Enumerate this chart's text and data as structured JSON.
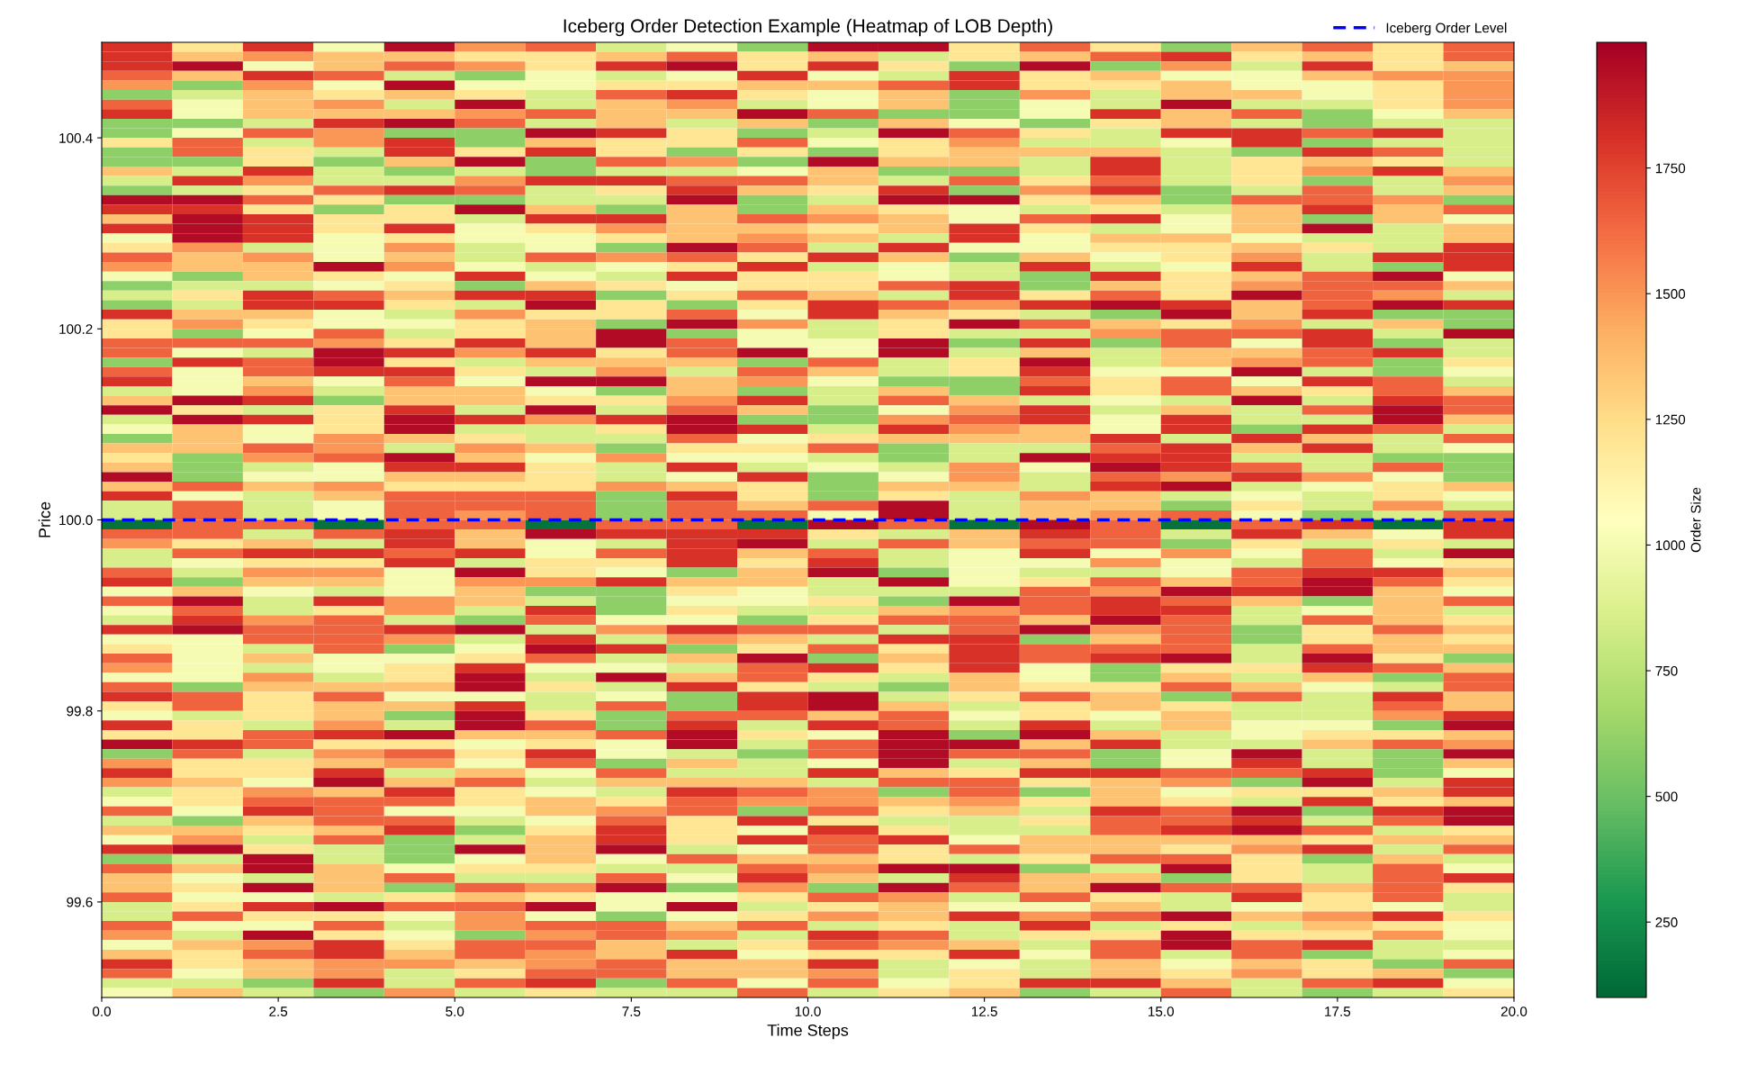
{
  "chart_data": {
    "type": "heatmap",
    "title": "Iceberg Order Detection Example (Heatmap of LOB Depth)",
    "xlabel": "Time Steps",
    "ylabel": "Price",
    "clabel": "Order Size",
    "xlim": [
      0,
      20
    ],
    "xticks": [
      {
        "value": 0,
        "label": "0.0"
      },
      {
        "value": 2.5,
        "label": "2.5"
      },
      {
        "value": 5,
        "label": "5.0"
      },
      {
        "value": 7.5,
        "label": "7.5"
      },
      {
        "value": 10,
        "label": "10.0"
      },
      {
        "value": 12.5,
        "label": "12.5"
      },
      {
        "value": 15,
        "label": "15.0"
      },
      {
        "value": 17.5,
        "label": "17.5"
      },
      {
        "value": 20,
        "label": "20.0"
      }
    ],
    "ylim": [
      99.5,
      100.5
    ],
    "yticks": [
      99.6,
      99.8,
      {
        "value": 100,
        "label": "100.0"
      },
      100.2,
      100.4
    ],
    "clim": [
      100,
      2000
    ],
    "cticks": [
      250,
      500,
      750,
      1000,
      1250,
      1500,
      1750
    ],
    "ref_lines": [
      {
        "axis": "y",
        "value": 100,
        "label": "Iceberg Order Level",
        "color": "#0000ff",
        "line_style": "dashed"
      }
    ],
    "legend": "top right",
    "cells": [
      [
        1800,
        1200,
        1800,
        1000,
        1950,
        1500,
        1650,
        850,
        1000,
        600,
        1950,
        1950,
        1200,
        1650,
        1200,
        600,
        1350,
        1650,
        1200,
        1650
      ],
      [
        1800,
        1350,
        1500,
        1350,
        1350,
        1200,
        1200,
        1350,
        1650,
        1200,
        1350,
        850,
        1200,
        1350,
        1650,
        1800,
        1200,
        1350,
        1200,
        1650
      ],
      [
        1800,
        1950,
        1000,
        1350,
        1650,
        1500,
        1200,
        1800,
        1950,
        1200,
        1800,
        1200,
        600,
        1950,
        600,
        1500,
        850,
        1800,
        1200,
        1350
      ],
      [
        1650,
        1350,
        1800,
        1650,
        850,
        600,
        1000,
        850,
        1000,
        1800,
        1000,
        850,
        1800,
        1200,
        1350,
        1000,
        1000,
        1350,
        1500,
        1500
      ],
      [
        1500,
        600,
        1500,
        1000,
        1950,
        1000,
        1000,
        1200,
        1200,
        1350,
        1350,
        1650,
        1800,
        1200,
        1200,
        1350,
        1000,
        1000,
        1200,
        1500
      ],
      [
        600,
        850,
        1350,
        1200,
        1350,
        1200,
        850,
        1650,
        1800,
        1200,
        1000,
        1350,
        600,
        1500,
        850,
        1350,
        1350,
        1000,
        1200,
        1500
      ],
      [
        1650,
        1000,
        1350,
        1500,
        850,
        1950,
        850,
        1350,
        1500,
        850,
        1000,
        1350,
        600,
        1000,
        850,
        1950,
        850,
        850,
        1200,
        1500
      ],
      [
        1800,
        1000,
        1350,
        1350,
        1350,
        1500,
        1650,
        1350,
        1350,
        1950,
        1650,
        600,
        600,
        1000,
        1800,
        1350,
        1650,
        600,
        1000,
        1350
      ],
      [
        600,
        600,
        850,
        1800,
        1950,
        1650,
        850,
        1350,
        850,
        1350,
        600,
        1350,
        1000,
        600,
        1200,
        1350,
        850,
        600,
        850,
        850
      ],
      [
        600,
        1000,
        1650,
        1500,
        600,
        600,
        1950,
        1800,
        1200,
        600,
        850,
        1950,
        1650,
        1200,
        850,
        1800,
        1800,
        1650,
        1800,
        850
      ],
      [
        1200,
        1650,
        850,
        1500,
        1800,
        600,
        1350,
        1200,
        1200,
        1650,
        1000,
        1200,
        1500,
        850,
        850,
        1000,
        1800,
        600,
        850,
        850
      ],
      [
        600,
        1650,
        1200,
        850,
        1800,
        1200,
        1800,
        1200,
        600,
        1200,
        600,
        1200,
        1350,
        1350,
        1350,
        850,
        600,
        1800,
        1650,
        850
      ],
      [
        600,
        600,
        1200,
        600,
        1350,
        1950,
        600,
        1650,
        1500,
        600,
        1950,
        1350,
        1350,
        850,
        1800,
        850,
        1200,
        1350,
        1200,
        850
      ],
      [
        1350,
        850,
        1800,
        850,
        600,
        850,
        600,
        850,
        850,
        1000,
        1350,
        600,
        600,
        850,
        1800,
        850,
        1200,
        1500,
        1800,
        1350
      ],
      [
        850,
        1800,
        1500,
        850,
        850,
        1500,
        1800,
        1800,
        1650,
        1650,
        1350,
        850,
        1650,
        1200,
        1650,
        850,
        1200,
        600,
        850,
        1500
      ],
      [
        600,
        850,
        1200,
        1650,
        1800,
        1650,
        850,
        1200,
        1800,
        1350,
        1200,
        1800,
        600,
        1500,
        1800,
        600,
        850,
        1650,
        850,
        1350
      ],
      [
        1950,
        1950,
        1650,
        1200,
        600,
        600,
        850,
        850,
        1950,
        600,
        850,
        1950,
        1950,
        1200,
        1350,
        600,
        1650,
        1650,
        1500,
        600
      ],
      [
        1800,
        1800,
        1200,
        600,
        1200,
        1950,
        1350,
        600,
        1350,
        600,
        1350,
        1200,
        1000,
        850,
        1200,
        850,
        1350,
        1800,
        1350,
        1650
      ],
      [
        1350,
        1950,
        1800,
        1200,
        1200,
        850,
        1800,
        1800,
        1350,
        1650,
        1500,
        1350,
        1000,
        1650,
        1800,
        1000,
        1350,
        600,
        1350,
        1000
      ],
      [
        1800,
        1950,
        1800,
        1200,
        1800,
        1000,
        1200,
        1500,
        1350,
        1350,
        1200,
        1350,
        1800,
        1200,
        850,
        1000,
        1350,
        1950,
        850,
        1350
      ],
      [
        1000,
        1950,
        1800,
        1000,
        1200,
        1000,
        1000,
        1200,
        1350,
        1500,
        1350,
        850,
        1800,
        1000,
        1350,
        1350,
        1000,
        850,
        850,
        1350
      ],
      [
        1200,
        1500,
        850,
        1000,
        1500,
        850,
        1000,
        600,
        1950,
        1650,
        850,
        1800,
        1000,
        1000,
        1200,
        1200,
        1350,
        1200,
        850,
        1800
      ],
      [
        1650,
        1350,
        1500,
        1000,
        1350,
        850,
        1650,
        1500,
        1650,
        1200,
        1800,
        1350,
        600,
        1350,
        1000,
        1200,
        1500,
        850,
        1800,
        1800
      ],
      [
        1500,
        1350,
        1350,
        1950,
        1500,
        1000,
        850,
        1000,
        1200,
        1800,
        850,
        1000,
        850,
        1800,
        850,
        1000,
        1800,
        850,
        600,
        1800
      ],
      [
        1000,
        600,
        1350,
        1200,
        1000,
        1800,
        1000,
        850,
        1800,
        1200,
        1200,
        1000,
        850,
        600,
        1800,
        1200,
        1350,
        1650,
        1950,
        1000
      ],
      [
        600,
        850,
        850,
        1000,
        1200,
        600,
        1350,
        1200,
        1000,
        1200,
        1200,
        1650,
        1800,
        600,
        1350,
        1200,
        1500,
        1650,
        1650,
        1350
      ],
      [
        850,
        1200,
        1800,
        1650,
        1350,
        1800,
        1800,
        600,
        1200,
        1650,
        1350,
        850,
        1800,
        1200,
        1650,
        1200,
        1950,
        1650,
        1500,
        850
      ],
      [
        600,
        850,
        1800,
        1800,
        1200,
        850,
        1950,
        1200,
        600,
        1200,
        1800,
        1650,
        1500,
        1800,
        1950,
        1800,
        1350,
        1650,
        1950,
        1800
      ],
      [
        1800,
        1350,
        1350,
        1000,
        850,
        1500,
        1200,
        1200,
        1650,
        1000,
        1800,
        1350,
        1200,
        850,
        600,
        1950,
        1350,
        1800,
        600,
        600
      ],
      [
        1200,
        1500,
        1200,
        1000,
        1000,
        1200,
        1350,
        600,
        1950,
        1500,
        850,
        1200,
        1950,
        1650,
        1350,
        1200,
        1500,
        850,
        1350,
        600
      ],
      [
        1200,
        600,
        1000,
        1650,
        850,
        1200,
        1350,
        1950,
        600,
        1000,
        850,
        1200,
        850,
        850,
        1500,
        1650,
        1650,
        1800,
        850,
        1950
      ],
      [
        1650,
        1650,
        1650,
        1500,
        1200,
        1800,
        1350,
        1950,
        1650,
        1000,
        1000,
        1950,
        600,
        1800,
        600,
        1650,
        1000,
        1800,
        600,
        850
      ],
      [
        1650,
        1000,
        850,
        1950,
        1800,
        1500,
        1800,
        1200,
        1650,
        1950,
        1000,
        1950,
        850,
        1350,
        850,
        1350,
        1350,
        1650,
        1800,
        850
      ],
      [
        600,
        1800,
        1650,
        1950,
        1200,
        850,
        1350,
        1350,
        1350,
        600,
        1650,
        850,
        1200,
        1950,
        850,
        1350,
        1500,
        1650,
        600,
        1200
      ],
      [
        1650,
        1000,
        1650,
        1800,
        1800,
        1200,
        850,
        1500,
        850,
        1650,
        1350,
        850,
        1200,
        1800,
        1000,
        1000,
        1950,
        850,
        600,
        1000
      ],
      [
        1800,
        1000,
        1350,
        1000,
        1650,
        1000,
        1950,
        1950,
        1350,
        1500,
        1000,
        600,
        600,
        1650,
        1200,
        1650,
        1000,
        1800,
        1650,
        850
      ],
      [
        850,
        1000,
        1500,
        850,
        1350,
        1350,
        1000,
        600,
        1350,
        600,
        850,
        1350,
        600,
        1800,
        1200,
        1650,
        1350,
        1200,
        1650,
        1350
      ],
      [
        1350,
        1950,
        1800,
        600,
        1350,
        1350,
        1200,
        1200,
        1500,
        1800,
        850,
        1650,
        1350,
        850,
        1000,
        850,
        1950,
        850,
        1800,
        1650
      ],
      [
        1950,
        1200,
        850,
        1200,
        1800,
        850,
        1950,
        850,
        1650,
        1350,
        600,
        1000,
        1500,
        1800,
        850,
        1350,
        850,
        1650,
        1950,
        1650
      ],
      [
        850,
        1950,
        1800,
        1200,
        1950,
        1800,
        1500,
        1800,
        1950,
        600,
        600,
        1500,
        1650,
        1800,
        1000,
        1800,
        850,
        850,
        1950,
        1350
      ],
      [
        1000,
        1350,
        1000,
        1200,
        1950,
        850,
        850,
        1200,
        1950,
        1800,
        850,
        1800,
        1500,
        1350,
        1000,
        1800,
        600,
        1800,
        1650,
        850
      ],
      [
        600,
        1350,
        1000,
        1500,
        1350,
        1200,
        850,
        850,
        1650,
        1000,
        1200,
        1350,
        1350,
        1350,
        1800,
        850,
        1800,
        1350,
        850,
        1650
      ],
      [
        1350,
        1350,
        1650,
        1500,
        850,
        1500,
        1350,
        600,
        1200,
        1200,
        1650,
        600,
        850,
        850,
        1650,
        1800,
        1350,
        1800,
        850,
        1000
      ],
      [
        1200,
        600,
        1500,
        1650,
        1950,
        1350,
        1000,
        1500,
        1000,
        1000,
        850,
        600,
        850,
        1950,
        1800,
        1800,
        850,
        850,
        600,
        600
      ],
      [
        1350,
        600,
        850,
        1000,
        1800,
        1800,
        1200,
        850,
        1800,
        850,
        1000,
        850,
        1500,
        1000,
        1950,
        1800,
        1650,
        850,
        1650,
        600
      ],
      [
        1950,
        600,
        1000,
        1000,
        1350,
        1350,
        1200,
        850,
        1000,
        1800,
        600,
        1000,
        1500,
        850,
        1650,
        1500,
        1800,
        1500,
        1000,
        600
      ],
      [
        1350,
        1650,
        1350,
        1500,
        1200,
        1200,
        1200,
        1500,
        1350,
        1200,
        600,
        1350,
        1350,
        850,
        1800,
        1950,
        850,
        1000,
        1200,
        1350
      ],
      [
        1800,
        1000,
        850,
        1350,
        1650,
        1650,
        1650,
        600,
        1800,
        1200,
        600,
        1200,
        850,
        1500,
        1350,
        850,
        1000,
        850,
        1200,
        1000
      ],
      [
        850,
        1650,
        850,
        1000,
        1650,
        1650,
        1650,
        600,
        1650,
        1350,
        1650,
        1950,
        850,
        1350,
        1350,
        600,
        1200,
        850,
        1500,
        850
      ],
      [
        850,
        1650,
        850,
        1000,
        1650,
        1500,
        1650,
        600,
        1650,
        1650,
        1000,
        1950,
        850,
        1350,
        1500,
        1650,
        1000,
        600,
        850,
        1650
      ],
      [
        150,
        1650,
        1650,
        150,
        1650,
        1650,
        150,
        1650,
        1650,
        150,
        1950,
        1650,
        150,
        1950,
        1650,
        150,
        1650,
        1800,
        150,
        1800
      ],
      [
        1650,
        1650,
        850,
        1650,
        1800,
        1350,
        1950,
        1800,
        1800,
        1800,
        1200,
        850,
        1350,
        1800,
        1650,
        850,
        1800,
        1350,
        1000,
        1800
      ],
      [
        1500,
        1200,
        1350,
        850,
        1800,
        1350,
        1000,
        850,
        1800,
        1950,
        850,
        1650,
        1350,
        1650,
        1650,
        600,
        1200,
        850,
        1200,
        850
      ],
      [
        850,
        1650,
        1800,
        1800,
        1650,
        1800,
        1000,
        1650,
        1800,
        1350,
        1650,
        850,
        1000,
        1800,
        1000,
        1500,
        1000,
        1650,
        850,
        1950
      ],
      [
        850,
        1000,
        1200,
        1200,
        1800,
        850,
        1200,
        1200,
        1800,
        1200,
        1800,
        850,
        1000,
        1000,
        1500,
        1000,
        850,
        1650,
        1000,
        1200
      ],
      [
        1650,
        850,
        1500,
        1500,
        1000,
        1950,
        1200,
        1000,
        600,
        1350,
        1950,
        600,
        1000,
        850,
        850,
        1000,
        1650,
        1800,
        1800,
        1350
      ],
      [
        1800,
        600,
        1350,
        1350,
        1000,
        1500,
        1500,
        1800,
        1350,
        1350,
        850,
        1950,
        1000,
        1200,
        1650,
        1350,
        1650,
        1950,
        1650,
        1200
      ],
      [
        1000,
        1350,
        1000,
        850,
        1000,
        1350,
        600,
        600,
        1200,
        1000,
        850,
        850,
        850,
        1650,
        1500,
        1950,
        1800,
        1950,
        1350,
        1000
      ],
      [
        1650,
        1950,
        850,
        1800,
        1500,
        1350,
        850,
        600,
        1000,
        1000,
        1200,
        600,
        1950,
        1650,
        1800,
        1650,
        1350,
        600,
        1350,
        1650
      ],
      [
        1000,
        1650,
        850,
        1200,
        1500,
        850,
        1800,
        600,
        1200,
        850,
        850,
        1350,
        1500,
        1650,
        1800,
        1800,
        850,
        1000,
        1350,
        850
      ],
      [
        850,
        1800,
        1500,
        1650,
        850,
        600,
        1650,
        1000,
        1000,
        600,
        1200,
        1650,
        1650,
        1350,
        1950,
        1650,
        850,
        1650,
        1350,
        1200
      ],
      [
        1800,
        1950,
        1650,
        1650,
        1800,
        1950,
        850,
        1500,
        1800,
        1650,
        1650,
        850,
        1650,
        1950,
        1500,
        1650,
        600,
        1200,
        1650,
        1350
      ],
      [
        1000,
        1000,
        1650,
        1650,
        1500,
        850,
        1800,
        850,
        1500,
        1350,
        850,
        1800,
        1800,
        600,
        1350,
        1650,
        600,
        1200,
        1350,
        1200
      ],
      [
        1200,
        1000,
        850,
        1650,
        600,
        1000,
        1950,
        1800,
        600,
        1200,
        1650,
        1200,
        1800,
        1650,
        1650,
        1650,
        850,
        1650,
        1350,
        1350
      ],
      [
        1650,
        1000,
        1350,
        1000,
        1000,
        1200,
        1650,
        850,
        1350,
        1950,
        600,
        1350,
        1800,
        1650,
        1800,
        1950,
        850,
        1950,
        1200,
        600
      ],
      [
        1500,
        1000,
        850,
        1000,
        1200,
        1800,
        1000,
        1000,
        850,
        1650,
        1800,
        1200,
        1800,
        1000,
        600,
        1200,
        1200,
        1800,
        1650,
        1350
      ],
      [
        1000,
        1000,
        1500,
        850,
        1200,
        1950,
        850,
        1950,
        1350,
        1650,
        1200,
        850,
        1350,
        1000,
        600,
        1350,
        850,
        1350,
        600,
        1650
      ],
      [
        1650,
        600,
        1350,
        1350,
        1350,
        1950,
        1200,
        850,
        1800,
        1200,
        850,
        600,
        1350,
        1200,
        1200,
        1650,
        1350,
        1000,
        850,
        1650
      ],
      [
        1800,
        1650,
        1200,
        1650,
        1000,
        1000,
        850,
        1000,
        600,
        1800,
        1950,
        850,
        1200,
        1650,
        1350,
        600,
        1650,
        850,
        1800,
        1350
      ],
      [
        1200,
        1650,
        1200,
        1350,
        1350,
        1800,
        850,
        1650,
        600,
        1800,
        1950,
        1350,
        850,
        1200,
        1350,
        1200,
        850,
        850,
        1650,
        1350
      ],
      [
        1000,
        850,
        1200,
        1350,
        600,
        1950,
        1200,
        600,
        1650,
        1650,
        1350,
        1650,
        1000,
        1200,
        1000,
        1350,
        850,
        850,
        1500,
        1800
      ],
      [
        1800,
        1200,
        850,
        1500,
        850,
        1950,
        1650,
        600,
        1800,
        850,
        1800,
        1650,
        850,
        1800,
        850,
        1350,
        1000,
        1000,
        600,
        1950
      ],
      [
        1200,
        1200,
        1650,
        1800,
        1950,
        1350,
        1350,
        1650,
        1950,
        1200,
        1000,
        1950,
        600,
        1950,
        1350,
        850,
        1000,
        1200,
        1200,
        1350
      ],
      [
        1950,
        1800,
        1650,
        1200,
        1200,
        1000,
        1200,
        1000,
        1950,
        850,
        1650,
        1950,
        1950,
        1350,
        1800,
        850,
        850,
        1350,
        1650,
        1500
      ],
      [
        600,
        1650,
        850,
        1500,
        1650,
        1200,
        1800,
        1000,
        850,
        600,
        1650,
        1950,
        1650,
        1650,
        600,
        1000,
        1950,
        850,
        600,
        1950
      ],
      [
        1500,
        1200,
        1200,
        1350,
        1500,
        1000,
        1650,
        600,
        1350,
        850,
        1000,
        1950,
        850,
        1350,
        600,
        1000,
        1800,
        850,
        600,
        1350
      ],
      [
        1800,
        1200,
        1200,
        1800,
        850,
        1350,
        1000,
        1650,
        850,
        850,
        1800,
        1350,
        1200,
        1800,
        1800,
        1650,
        1650,
        1800,
        600,
        1000
      ],
      [
        1500,
        1350,
        1000,
        1950,
        1350,
        1650,
        850,
        1350,
        1350,
        1350,
        850,
        1650,
        1650,
        1200,
        1350,
        1500,
        600,
        1950,
        850,
        1800
      ],
      [
        850,
        1200,
        1500,
        1350,
        1800,
        1200,
        1000,
        850,
        1800,
        1650,
        1500,
        600,
        1650,
        600,
        1350,
        1000,
        1200,
        1200,
        1350,
        1800
      ],
      [
        1000,
        1200,
        1650,
        1650,
        1650,
        1200,
        1350,
        1200,
        1650,
        1500,
        1500,
        1350,
        1500,
        1200,
        1350,
        1200,
        850,
        1800,
        1200,
        1350
      ],
      [
        1650,
        1000,
        1800,
        1650,
        1000,
        1000,
        1350,
        1500,
        1650,
        600,
        1650,
        1200,
        1350,
        850,
        1800,
        1650,
        1950,
        600,
        1800,
        1950
      ],
      [
        850,
        600,
        1350,
        1650,
        1650,
        850,
        1000,
        1650,
        1200,
        1800,
        1200,
        850,
        850,
        1200,
        1650,
        1650,
        1800,
        850,
        1650,
        1950
      ],
      [
        1350,
        1350,
        1200,
        1350,
        1800,
        600,
        1200,
        1800,
        1200,
        1000,
        1800,
        1200,
        850,
        850,
        1650,
        1800,
        1950,
        1650,
        850,
        1200
      ],
      [
        1000,
        1500,
        850,
        1650,
        600,
        850,
        1350,
        1800,
        1200,
        1800,
        1650,
        1800,
        1000,
        1350,
        1350,
        1350,
        1350,
        1200,
        1350,
        1350
      ],
      [
        1800,
        1950,
        1200,
        850,
        600,
        1950,
        1350,
        1950,
        850,
        1000,
        1650,
        1200,
        1650,
        1350,
        1350,
        1200,
        1500,
        1800,
        850,
        1650
      ],
      [
        600,
        850,
        1950,
        850,
        600,
        1000,
        1350,
        1000,
        1650,
        1350,
        1350,
        1200,
        850,
        1200,
        1650,
        1650,
        1200,
        600,
        1350,
        850
      ],
      [
        1650,
        1350,
        1950,
        1350,
        1000,
        1200,
        1200,
        850,
        850,
        1650,
        1500,
        1950,
        1950,
        600,
        850,
        1950,
        1200,
        850,
        1650,
        1000
      ],
      [
        1350,
        1000,
        850,
        1350,
        1650,
        850,
        850,
        1650,
        1000,
        1800,
        1350,
        850,
        1800,
        1350,
        1350,
        600,
        1200,
        850,
        1650,
        1800
      ],
      [
        1350,
        1200,
        1950,
        1350,
        600,
        1650,
        1500,
        1950,
        600,
        1500,
        600,
        1950,
        1650,
        1350,
        1950,
        1650,
        1650,
        1350,
        1650,
        1200
      ],
      [
        1650,
        1000,
        1000,
        850,
        1200,
        1350,
        1200,
        1000,
        1000,
        1200,
        1650,
        1500,
        850,
        1650,
        1200,
        850,
        1800,
        1200,
        1650,
        850
      ],
      [
        850,
        1200,
        1800,
        1950,
        1650,
        1650,
        1950,
        1000,
        1950,
        850,
        1200,
        1350,
        1000,
        1000,
        1350,
        850,
        1000,
        1200,
        1000,
        850
      ],
      [
        850,
        1650,
        1200,
        1200,
        1000,
        1500,
        1000,
        600,
        1000,
        1200,
        1500,
        1350,
        1800,
        1500,
        1650,
        1950,
        1350,
        1500,
        1800,
        1200
      ],
      [
        1650,
        1000,
        1000,
        1650,
        850,
        1500,
        1650,
        1650,
        1350,
        1650,
        850,
        1200,
        850,
        1800,
        850,
        1200,
        850,
        1350,
        1200,
        1000
      ],
      [
        1500,
        850,
        1950,
        1200,
        1000,
        600,
        1500,
        1650,
        1500,
        850,
        1800,
        1650,
        850,
        1200,
        1200,
        1950,
        1200,
        1200,
        1500,
        1000
      ],
      [
        1000,
        1350,
        1500,
        1800,
        1200,
        1650,
        1650,
        1350,
        850,
        1200,
        1650,
        1500,
        1350,
        850,
        1650,
        1950,
        1650,
        1800,
        850,
        850
      ],
      [
        1350,
        1200,
        1650,
        1800,
        1350,
        1650,
        1500,
        1350,
        1800,
        1000,
        1200,
        1200,
        1800,
        1000,
        1650,
        850,
        1650,
        600,
        850,
        1000
      ],
      [
        1800,
        1200,
        1350,
        1500,
        1500,
        1350,
        1500,
        1650,
        1350,
        1350,
        1800,
        850,
        1000,
        850,
        1350,
        1000,
        1350,
        1200,
        600,
        1650
      ],
      [
        1650,
        1000,
        1350,
        1500,
        850,
        1200,
        1650,
        1650,
        1350,
        1350,
        1500,
        850,
        1200,
        850,
        1350,
        1200,
        1500,
        1200,
        1350,
        600
      ],
      [
        850,
        850,
        600,
        1800,
        850,
        1650,
        1800,
        600,
        1650,
        1000,
        1650,
        1000,
        1200,
        1800,
        1800,
        1350,
        850,
        1650,
        1800,
        1000
      ],
      [
        1000,
        1350,
        850,
        600,
        1500,
        850,
        1200,
        850,
        850,
        1650,
        850,
        1200,
        1350,
        600,
        850,
        1650,
        850,
        600,
        850,
        1200
      ]
    ]
  }
}
